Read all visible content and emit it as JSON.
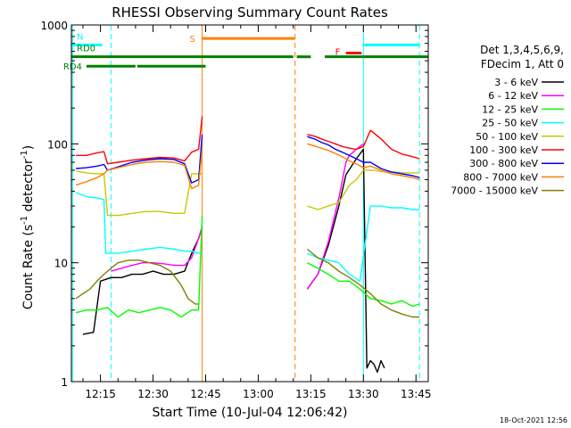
{
  "chart_data": {
    "type": "line",
    "title": "RHESSI Observing Summary Count Rates",
    "xlabel": "Start Time (10-Jul-04 12:06:42)",
    "ylabel_main": "Count Rate (s",
    "ylabel_sup1": "-1",
    "ylabel_mid": " detector",
    "ylabel_sup2": "-1",
    "ylabel_end": ")",
    "yscale": "log",
    "ylim": [
      1,
      1000
    ],
    "xlim_minutes": [
      726.7,
      828.5
    ],
    "x_ticks": [
      {
        "label": "12:15",
        "minute": 735
      },
      {
        "label": "12:30",
        "minute": 750
      },
      {
        "label": "12:45",
        "minute": 765
      },
      {
        "label": "13:00",
        "minute": 780
      },
      {
        "label": "13:15",
        "minute": 795
      },
      {
        "label": "13:30",
        "minute": 810
      },
      {
        "label": "13:45",
        "minute": 825
      }
    ],
    "y_ticks": [
      {
        "label": "1",
        "value": 1
      },
      {
        "label": "10",
        "value": 10
      },
      {
        "label": "100",
        "value": 100
      },
      {
        "label": "1000",
        "value": 1000
      }
    ],
    "legend_header": [
      "Det 1,3,4,5,6,9,",
      "FDecim 1, Att 0"
    ],
    "legend_placement": "right",
    "timestamp": "18-Oct-2021 12:56",
    "flag_bars": [
      {
        "label": "N",
        "color": "#00ffff",
        "y_level": 680,
        "segments": [
          [
            726.7,
            735.5
          ],
          [
            810.0,
            826.0
          ]
        ]
      },
      {
        "label": "RD0",
        "color": "#008000",
        "y_level": 540,
        "segments": [
          [
            726.7,
            790.0
          ],
          [
            791.0,
            795.0
          ],
          [
            799.0,
            828.5
          ]
        ]
      },
      {
        "label": "RD4",
        "color": "#008000",
        "y_level": 450,
        "segments": [
          [
            731.0,
            745.0
          ],
          [
            745.5,
            765.0
          ]
        ]
      },
      {
        "label": "S",
        "color": "#ff8000",
        "y_level": 770,
        "segments": [
          [
            764.0,
            790.5
          ]
        ]
      },
      {
        "label": "F",
        "color": "#ff0000",
        "y_level": 580,
        "segments": [
          [
            805.0,
            809.5
          ]
        ]
      }
    ],
    "vertical_markers": [
      {
        "minute": 727.0,
        "color": "#00ffff",
        "style": "solid"
      },
      {
        "minute": 738.0,
        "color": "#00ffff",
        "style": "dashed"
      },
      {
        "minute": 764.0,
        "color": "#ff8000",
        "style": "solid"
      },
      {
        "minute": 790.5,
        "color": "#ff8000",
        "style": "dashed"
      },
      {
        "minute": 810.0,
        "color": "#00ffff",
        "style": "solid"
      },
      {
        "minute": 826.0,
        "color": "#00ffff",
        "style": "dashed"
      }
    ],
    "series": [
      {
        "name": "3 - 6 keV",
        "color": "#000000",
        "x": [
          730,
          733,
          735,
          738,
          741,
          744,
          747,
          750,
          753,
          756,
          759,
          761,
          763,
          764,
          794,
          797,
          800,
          803,
          805,
          808,
          810,
          811,
          812,
          813,
          814,
          815,
          816
        ],
        "y": [
          2.5,
          2.6,
          7,
          7.5,
          7.5,
          8,
          8,
          8.5,
          8,
          8,
          8.5,
          12,
          16,
          20,
          6,
          8,
          14,
          30,
          55,
          75,
          90,
          1.3,
          1.5,
          1.4,
          1.2,
          1.5,
          1.3
        ]
      },
      {
        "name": "6 - 12 keV",
        "color": "#ff00ff",
        "x": [
          738,
          741,
          744,
          747,
          750,
          753,
          756,
          759,
          761,
          763,
          764,
          794,
          797,
          800,
          803,
          805,
          806,
          808,
          810
        ],
        "y": [
          8.5,
          9,
          9.5,
          10,
          10,
          9.8,
          9.5,
          9.5,
          11,
          16,
          20,
          6,
          8,
          15,
          35,
          70,
          80,
          90,
          100
        ]
      },
      {
        "name": "12 - 25 keV",
        "color": "#00ff00",
        "x": [
          728,
          731,
          734,
          737,
          740,
          743,
          746,
          749,
          752,
          755,
          758,
          761,
          763,
          764,
          794,
          797,
          800,
          803,
          806,
          809,
          812,
          815,
          818,
          821,
          824,
          826
        ],
        "y": [
          3.8,
          4,
          4,
          4.2,
          3.5,
          4,
          3.8,
          4,
          4.2,
          4,
          3.5,
          4,
          4,
          25,
          10,
          9,
          8,
          7,
          7,
          6,
          5,
          4.8,
          4.5,
          4.8,
          4.3,
          4.5
        ]
      },
      {
        "name": "25 - 50 keV",
        "color": "#00ffff",
        "x": [
          728,
          731,
          734,
          736,
          736.5,
          740,
          744,
          748,
          752,
          756,
          759,
          761,
          763,
          764,
          794,
          797,
          800,
          803,
          806,
          809,
          812,
          815,
          818,
          821,
          824,
          826
        ],
        "y": [
          39,
          36,
          35,
          34,
          12,
          12,
          12.5,
          13,
          13.5,
          13,
          12.5,
          12.5,
          12,
          12,
          12,
          11,
          10.5,
          10,
          8,
          7,
          30,
          30,
          29,
          29,
          28,
          28
        ]
      },
      {
        "name": "50 - 100 keV",
        "color": "#c8c800",
        "x": [
          728,
          731,
          734,
          736,
          737,
          740,
          744,
          748,
          752,
          756,
          759,
          761,
          763,
          764,
          794,
          797,
          800,
          803,
          806,
          808,
          810,
          813,
          816,
          819,
          822,
          825,
          826
        ],
        "y": [
          59,
          57,
          56,
          56,
          25,
          25,
          26,
          27,
          27,
          26,
          26,
          56,
          56,
          56,
          30,
          28,
          30,
          32,
          45,
          50,
          60,
          60,
          58,
          58,
          57,
          57,
          57
        ]
      },
      {
        "name": "100 - 300 keV",
        "color": "#ff0000",
        "x": [
          728,
          731,
          734,
          736,
          737,
          740,
          744,
          748,
          752,
          756,
          759,
          761,
          763,
          764,
          794,
          796,
          798,
          800,
          802,
          804,
          806,
          808,
          810,
          812,
          815,
          818,
          821,
          824,
          826
        ],
        "y": [
          80,
          80,
          84,
          86,
          68,
          70,
          73,
          75,
          77,
          76,
          72,
          85,
          90,
          170,
          120,
          116,
          110,
          105,
          100,
          95,
          92,
          90,
          95,
          130,
          110,
          90,
          82,
          78,
          75
        ]
      },
      {
        "name": "300 - 800 keV",
        "color": "#0000ff",
        "x": [
          728,
          731,
          734,
          736,
          737,
          740,
          744,
          748,
          752,
          756,
          759,
          761,
          763,
          764,
          794,
          796,
          798,
          800,
          802,
          804,
          806,
          808,
          810,
          812,
          815,
          818,
          821,
          824,
          826
        ],
        "y": [
          62,
          63,
          65,
          67,
          60,
          64,
          70,
          73,
          75,
          74,
          68,
          47,
          50,
          120,
          115,
          110,
          103,
          98,
          90,
          85,
          80,
          75,
          70,
          70,
          62,
          58,
          56,
          54,
          52
        ]
      },
      {
        "name": "800 - 7000 keV",
        "color": "#ff8000",
        "x": [
          728,
          731,
          734,
          736,
          737,
          740,
          744,
          748,
          752,
          756,
          759,
          761,
          763,
          764,
          794,
          796,
          798,
          800,
          802,
          804,
          806,
          808,
          810,
          812,
          815,
          818,
          821,
          824,
          826
        ],
        "y": [
          45,
          48,
          52,
          56,
          60,
          63,
          67,
          70,
          71,
          70,
          66,
          42,
          45,
          90,
          100,
          96,
          92,
          88,
          83,
          78,
          72,
          68,
          63,
          65,
          60,
          56,
          54,
          52,
          50
        ]
      },
      {
        "name": "7000 - 15000 keV",
        "color": "#808000",
        "x": [
          728,
          730,
          732,
          734,
          736,
          738,
          740,
          743,
          746,
          749,
          752,
          755,
          758,
          760,
          762,
          763,
          794,
          797,
          800,
          803,
          806,
          809,
          812,
          815,
          818,
          821,
          824,
          826
        ],
        "y": [
          5,
          5.5,
          6,
          7,
          8,
          9,
          10,
          10.5,
          10.5,
          10,
          9.5,
          8.5,
          6.5,
          5,
          4.5,
          4.5,
          13,
          11,
          10,
          8.5,
          7.5,
          6.5,
          5.5,
          4.5,
          4,
          3.7,
          3.5,
          3.5
        ]
      }
    ]
  }
}
